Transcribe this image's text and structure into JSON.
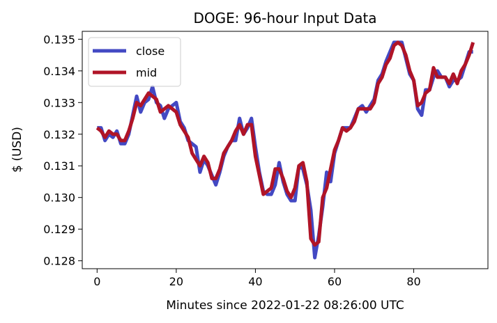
{
  "chart_data": {
    "type": "line",
    "title": "DOGE: 96-hour Input Data",
    "xlabel": "Minutes since 2022-01-22 08:26:00 UTC",
    "ylabel": "$ (USD)",
    "xlim": [
      -3.75,
      98.75
    ],
    "ylim": [
      0.12775,
      0.13525
    ],
    "x_ticks": [
      0,
      20,
      40,
      60,
      80
    ],
    "x_tick_labels": [
      "0",
      "20",
      "40",
      "60",
      "80"
    ],
    "y_ticks": [
      0.128,
      0.129,
      0.13,
      0.131,
      0.132,
      0.133,
      0.134,
      0.135
    ],
    "y_tick_labels": [
      "0.128",
      "0.129",
      "0.130",
      "0.131",
      "0.132",
      "0.133",
      "0.134",
      "0.135"
    ],
    "grid": false,
    "legend_position": "top-left",
    "series": [
      {
        "name": "close",
        "color": "#4349c3",
        "values": [
          0.1322,
          0.1322,
          0.1318,
          0.132,
          0.1319,
          0.1321,
          0.1317,
          0.1317,
          0.132,
          0.1326,
          0.1332,
          0.1327,
          0.133,
          0.1331,
          0.1335,
          0.133,
          0.1329,
          0.1325,
          0.1328,
          0.1329,
          0.133,
          0.1324,
          0.1322,
          0.1318,
          0.1317,
          0.1316,
          0.1308,
          0.1312,
          0.131,
          0.1307,
          0.1304,
          0.1308,
          0.1313,
          0.1316,
          0.1318,
          0.1318,
          0.1325,
          0.132,
          0.1322,
          0.1325,
          0.1316,
          0.1308,
          0.1302,
          0.1301,
          0.1301,
          0.1304,
          0.1311,
          0.1305,
          0.1301,
          0.1299,
          0.1299,
          0.131,
          0.1309,
          0.1304,
          0.1296,
          0.1281,
          0.1288,
          0.1297,
          0.1308,
          0.1305,
          0.1314,
          0.1318,
          0.1322,
          0.1322,
          0.1322,
          0.1325,
          0.1328,
          0.1329,
          0.1327,
          0.1329,
          0.1331,
          0.1337,
          0.1339,
          0.1343,
          0.1346,
          0.1349,
          0.1349,
          0.1349,
          0.1344,
          0.1339,
          0.1337,
          0.1328,
          0.1326,
          0.1334,
          0.1334,
          0.1338,
          0.134,
          0.1338,
          0.1338,
          0.1335,
          0.1337,
          0.1337,
          0.1338,
          0.1342,
          0.1346,
          0.1346
        ]
      },
      {
        "name": "mid",
        "color": "#b01427",
        "values": [
          0.1322,
          0.1321,
          0.1319,
          0.1321,
          0.132,
          0.132,
          0.1318,
          0.1318,
          0.1321,
          0.1325,
          0.133,
          0.1329,
          0.1331,
          0.1333,
          0.1332,
          0.1331,
          0.1327,
          0.1328,
          0.1329,
          0.1328,
          0.1327,
          0.1323,
          0.1321,
          0.1319,
          0.1314,
          0.1312,
          0.131,
          0.1313,
          0.1311,
          0.1306,
          0.1306,
          0.1309,
          0.1314,
          0.1316,
          0.1318,
          0.1321,
          0.1323,
          0.132,
          0.1323,
          0.1323,
          0.1313,
          0.1307,
          0.1301,
          0.1302,
          0.1303,
          0.1309,
          0.1309,
          0.1306,
          0.1302,
          0.13,
          0.1303,
          0.131,
          0.1311,
          0.1305,
          0.1287,
          0.1285,
          0.1286,
          0.13,
          0.1303,
          0.1309,
          0.1315,
          0.1318,
          0.1322,
          0.1321,
          0.1322,
          0.1324,
          0.1328,
          0.1328,
          0.1328,
          0.1328,
          0.133,
          0.1336,
          0.1338,
          0.1342,
          0.1344,
          0.1348,
          0.1349,
          0.1348,
          0.1345,
          0.134,
          0.1337,
          0.1329,
          0.133,
          0.1333,
          0.1334,
          0.1341,
          0.1338,
          0.1338,
          0.1338,
          0.1336,
          0.1339,
          0.1336,
          0.134,
          0.1342,
          0.1345,
          0.1349
        ]
      }
    ]
  }
}
